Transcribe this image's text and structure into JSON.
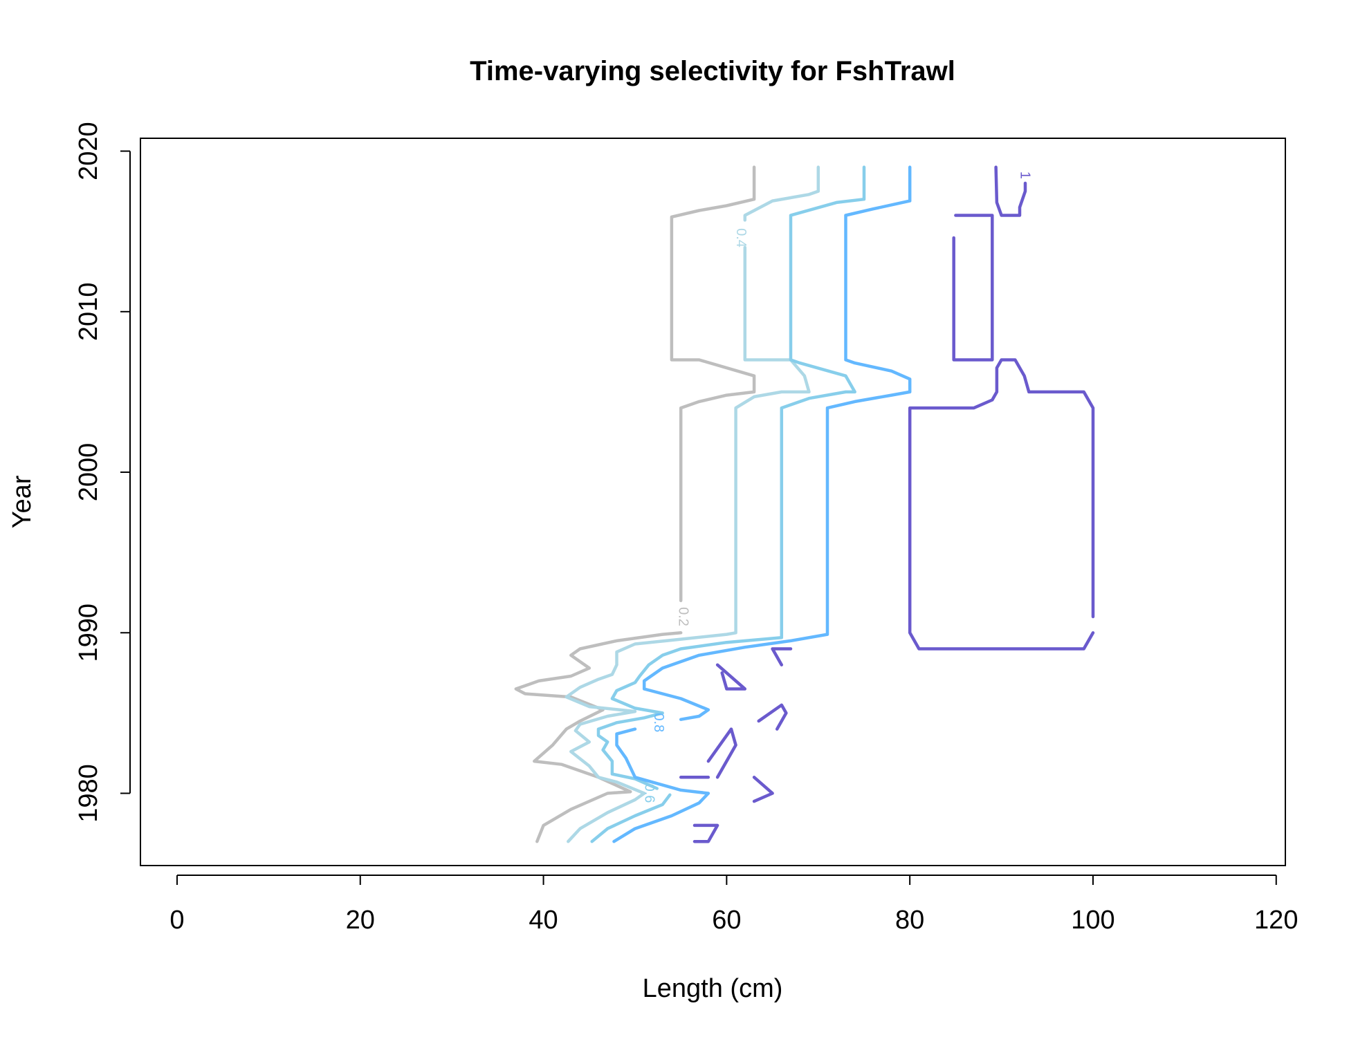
{
  "chart_data": {
    "type": "contour",
    "title": "Time-varying selectivity for FshTrawl",
    "xlabel": "Length (cm)",
    "ylabel": "Year",
    "xlim": [
      -4,
      121
    ],
    "ylim": [
      1975.5,
      2020.8
    ],
    "xticks": [
      0,
      20,
      40,
      60,
      80,
      100,
      120
    ],
    "yticks": [
      1980,
      1990,
      2000,
      2010,
      2020
    ],
    "grid": false,
    "legend": "none",
    "series": [
      {
        "name": "0.2",
        "color": "#BEBEBE",
        "label_at": [
          55.2,
          1991
        ],
        "lines": [
          [
            [
              39.3,
              1977
            ],
            [
              40,
              1978
            ],
            [
              43,
              1979
            ],
            [
              47,
              1980
            ],
            [
              49.5,
              1980.1
            ],
            [
              46,
              1981
            ],
            [
              42,
              1981.8
            ],
            [
              39,
              1982
            ],
            [
              41,
              1983
            ],
            [
              42.5,
              1984
            ],
            [
              44,
              1984.5
            ],
            [
              46.5,
              1985.2
            ],
            [
              43,
              1986
            ],
            [
              38,
              1986.2
            ],
            [
              37,
              1986.5
            ],
            [
              39.5,
              1987
            ],
            [
              43,
              1987.3
            ],
            [
              45,
              1987.8
            ],
            [
              43,
              1988.6
            ],
            [
              44,
              1989
            ],
            [
              48,
              1989.5
            ],
            [
              53,
              1989.9
            ],
            [
              55,
              1990
            ]
          ],
          [
            [
              55,
              1992
            ],
            [
              55,
              2004
            ],
            [
              57,
              2004.4
            ],
            [
              60,
              2004.8
            ],
            [
              63,
              2005
            ],
            [
              63,
              2006
            ],
            [
              57,
              2007
            ],
            [
              54,
              2007
            ],
            [
              54,
              2015.9
            ],
            [
              57,
              2016.3
            ],
            [
              60,
              2016.6
            ],
            [
              63,
              2017
            ],
            [
              63,
              2019
            ]
          ]
        ]
      },
      {
        "name": "0.4",
        "color": "#ADD8E6",
        "label_at": [
          61.5,
          2014.6
        ],
        "lines": [
          [
            [
              42.7,
              1977
            ],
            [
              44,
              1977.8
            ],
            [
              47,
              1978.8
            ],
            [
              50,
              1979.6
            ],
            [
              51,
              1980
            ],
            [
              48,
              1980.7
            ],
            [
              46,
              1981
            ],
            [
              45,
              1981.7
            ],
            [
              43,
              1982.6
            ],
            [
              45,
              1983.2
            ],
            [
              43.5,
              1983.9
            ],
            [
              44,
              1984.3
            ],
            [
              47,
              1984.8
            ],
            [
              50,
              1985.1
            ],
            [
              45,
              1985.4
            ],
            [
              42.5,
              1986
            ],
            [
              44,
              1986.6
            ],
            [
              46,
              1987.1
            ],
            [
              47.5,
              1987.4
            ],
            [
              48,
              1988
            ],
            [
              48,
              1988.8
            ],
            [
              50,
              1989.3
            ],
            [
              55,
              1989.6
            ],
            [
              60,
              1989.9
            ],
            [
              61,
              1990
            ],
            [
              61,
              2004
            ],
            [
              63,
              2004.7
            ],
            [
              66,
              2005
            ],
            [
              69,
              2005
            ],
            [
              68.5,
              2006
            ],
            [
              67,
              2007
            ],
            [
              62,
              2007
            ],
            [
              62,
              2014
            ]
          ],
          [
            [
              62,
              2015.7
            ],
            [
              62,
              2016
            ],
            [
              65,
              2016.9
            ],
            [
              69,
              2017.3
            ],
            [
              70,
              2017.5
            ],
            [
              70,
              2019
            ]
          ]
        ]
      },
      {
        "name": "0.6",
        "color": "#87CEEB",
        "label_at": [
          51.5,
          1980
        ],
        "lines": [
          [
            [
              45.3,
              1977
            ],
            [
              47,
              1977.8
            ],
            [
              50,
              1978.6
            ],
            [
              53,
              1979.3
            ],
            [
              53.8,
              1979.9
            ]
          ],
          [
            [
              52.4,
              1980.3
            ],
            [
              50,
              1980.9
            ],
            [
              47.5,
              1981.2
            ],
            [
              47.5,
              1982
            ],
            [
              46.5,
              1982.7
            ],
            [
              47,
              1983.2
            ],
            [
              46,
              1983.6
            ],
            [
              46,
              1984
            ],
            [
              48,
              1984.4
            ],
            [
              51,
              1984.7
            ],
            [
              53,
              1985
            ],
            [
              50,
              1985.3
            ],
            [
              47.5,
              1985.9
            ],
            [
              48,
              1986.4
            ],
            [
              50,
              1986.9
            ],
            [
              50.5,
              1987.3
            ],
            [
              51.5,
              1988
            ],
            [
              53,
              1988.6
            ],
            [
              55,
              1989
            ],
            [
              60,
              1989.4
            ],
            [
              66,
              1989.7
            ],
            [
              66,
              2004
            ],
            [
              69,
              2004.6
            ],
            [
              73,
              2005
            ],
            [
              74,
              2005
            ],
            [
              73,
              2006
            ],
            [
              68,
              2006.8
            ],
            [
              67,
              2007
            ],
            [
              67,
              2016
            ],
            [
              72,
              2016.8
            ],
            [
              75,
              2017
            ],
            [
              75,
              2019
            ]
          ]
        ]
      },
      {
        "name": "0.8",
        "color": "#63B8FF",
        "label_at": [
          52.5,
          1984.4
        ],
        "lines": [
          [
            [
              47.7,
              1977
            ],
            [
              50,
              1977.8
            ],
            [
              54,
              1978.6
            ],
            [
              57,
              1979.4
            ],
            [
              58,
              1980
            ],
            [
              55,
              1980.2
            ],
            [
              50,
              1981
            ],
            [
              49,
              1982.2
            ],
            [
              48,
              1983
            ],
            [
              48,
              1983.7
            ],
            [
              50,
              1984
            ]
          ],
          [
            [
              55,
              1984.6
            ],
            [
              57,
              1984.8
            ],
            [
              58,
              1985.2
            ],
            [
              55,
              1985.9
            ],
            [
              51,
              1986.5
            ],
            [
              51,
              1987
            ],
            [
              53,
              1987.8
            ],
            [
              57,
              1988.6
            ],
            [
              62,
              1989.1
            ],
            [
              67,
              1989.5
            ],
            [
              71,
              1989.9
            ],
            [
              71,
              2004
            ],
            [
              74,
              2004.4
            ],
            [
              78,
              2004.8
            ],
            [
              80,
              2005
            ],
            [
              80,
              2005.8
            ],
            [
              78,
              2006.3
            ],
            [
              74,
              2006.8
            ],
            [
              73,
              2007
            ],
            [
              73,
              2016
            ],
            [
              76,
              2016.4
            ],
            [
              80,
              2016.9
            ],
            [
              80,
              2019
            ]
          ]
        ]
      },
      {
        "name": "1",
        "color": "#6A5ACD",
        "label_at": [
          92.5,
          2018.5
        ],
        "lines": [
          [
            [
              89.4,
              2019
            ],
            [
              89.5,
              2016.8
            ],
            [
              90,
              2016
            ],
            [
              92,
              2016
            ],
            [
              92,
              2016.5
            ],
            [
              92.6,
              2017.5
            ],
            [
              92.6,
              2018
            ]
          ],
          [
            [
              84.8,
              2014.6
            ],
            [
              84.8,
              2007
            ],
            [
              89,
              2007
            ],
            [
              89,
              2016
            ],
            [
              85,
              2016
            ]
          ],
          [
            [
              100,
              1991
            ],
            [
              100,
              2004
            ],
            [
              99,
              2005
            ],
            [
              93,
              2005
            ],
            [
              92.5,
              2006
            ],
            [
              91.5,
              2007
            ],
            [
              90,
              2007
            ],
            [
              89.5,
              2006.5
            ],
            [
              89.5,
              2005
            ],
            [
              89,
              2004.5
            ],
            [
              87,
              2004
            ],
            [
              80,
              2004
            ],
            [
              80,
              1990
            ],
            [
              81,
              1989
            ],
            [
              99,
              1989
            ],
            [
              100,
              1990
            ]
          ],
          [
            [
              67,
              1989
            ],
            [
              65,
              1989
            ],
            [
              66,
              1988
            ]
          ],
          [
            [
              59,
              1988
            ],
            [
              62,
              1986.5
            ],
            [
              60,
              1986.5
            ],
            [
              59.5,
              1987.5
            ]
          ],
          [
            [
              63.5,
              1984.5
            ],
            [
              66,
              1985.5
            ],
            [
              66.5,
              1985
            ],
            [
              65.5,
              1984
            ]
          ],
          [
            [
              58,
              1982
            ],
            [
              60.5,
              1984
            ],
            [
              61,
              1983
            ],
            [
              59,
              1981
            ]
          ],
          [
            [
              55,
              1981
            ],
            [
              58,
              1981
            ]
          ],
          [
            [
              63,
              1979.5
            ],
            [
              65,
              1980
            ],
            [
              63,
              1981
            ]
          ],
          [
            [
              56.5,
              1977
            ],
            [
              58,
              1977
            ],
            [
              59,
              1978
            ],
            [
              56.5,
              1978
            ]
          ]
        ]
      }
    ]
  }
}
